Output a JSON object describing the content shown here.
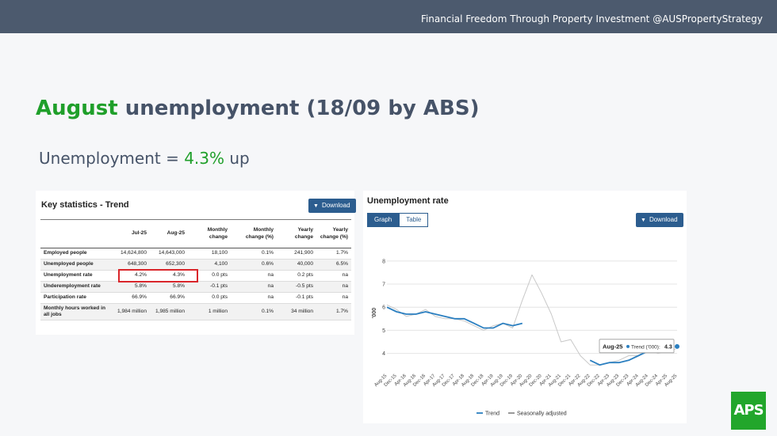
{
  "header": {
    "tagline": "Financial Freedom Through Property Investment @AUSPropertyStrategy"
  },
  "title": {
    "accent": "August",
    "rest": " unemployment (18/09 by ABS)"
  },
  "subtitle": {
    "prefix": "Unemployment = ",
    "value": "4.3%",
    "suffix": " up"
  },
  "stats_panel": {
    "title": "Key statistics - Trend",
    "download_label": "Download",
    "columns": [
      "",
      "Jul-25",
      "Aug-25",
      "Monthly change",
      "Monthly change (%)",
      "Yearly change",
      "Yearly change (%)"
    ],
    "rows": [
      [
        "Employed people",
        "14,624,800",
        "14,643,000",
        "18,100",
        "0.1%",
        "241,900",
        "1.7%"
      ],
      [
        "Unemployed people",
        "648,300",
        "652,300",
        "4,100",
        "0.6%",
        "40,000",
        "6.5%"
      ],
      [
        "Unemployment rate",
        "4.2%",
        "4.3%",
        "0.0 pts",
        "na",
        "0.2 pts",
        "na"
      ],
      [
        "Underemployment rate",
        "5.8%",
        "5.8%",
        "-0.1 pts",
        "na",
        "-0.5 pts",
        "na"
      ],
      [
        "Participation rate",
        "66.9%",
        "66.9%",
        "0.0 pts",
        "na",
        "-0.1 pts",
        "na"
      ],
      [
        "Monthly hours worked in all jobs",
        "1,984 million",
        "1,985 million",
        "1 million",
        "0.1%",
        "34 million",
        "1.7%"
      ]
    ]
  },
  "chart_panel": {
    "title": "Unemployment rate",
    "tabs": [
      {
        "label": "Graph",
        "active": true
      },
      {
        "label": "Table",
        "active": false
      }
    ],
    "download_label": "Download"
  },
  "chart_data": {
    "type": "line",
    "ylabel": "'000",
    "ylim": [
      3.3,
      8.2
    ],
    "yticks": [
      4,
      5,
      6,
      7,
      8
    ],
    "categories": [
      "Aug-15",
      "Dec-15",
      "Apr-16",
      "Aug-16",
      "Dec-16",
      "Apr-17",
      "Aug-17",
      "Dec-17",
      "Apr-18",
      "Aug-18",
      "Dec-18",
      "Apr-19",
      "Aug-19",
      "Dec-19",
      "Apr-20",
      "Aug-20",
      "Dec-20",
      "Apr-21",
      "Aug-21",
      "Dec-21",
      "Apr-22",
      "Aug-22",
      "Dec-22",
      "Apr-23",
      "Aug-23",
      "Dec-23",
      "Apr-24",
      "Aug-24",
      "Dec-24",
      "Apr-25",
      "Aug-25"
    ],
    "series": [
      {
        "name": "Trend",
        "color": "#2b7fc0",
        "values": [
          6.0,
          5.8,
          5.7,
          5.7,
          5.8,
          5.7,
          5.6,
          5.5,
          5.5,
          5.3,
          5.1,
          5.1,
          5.3,
          5.2,
          5.3,
          null,
          null,
          null,
          null,
          null,
          null,
          3.7,
          3.5,
          3.6,
          3.6,
          3.7,
          3.9,
          4.1,
          4.1,
          4.2,
          4.3
        ]
      },
      {
        "name": "Seasonally adjusted",
        "color": "#c8c8c8",
        "values": [
          6.1,
          5.9,
          5.6,
          5.7,
          5.9,
          5.6,
          5.5,
          5.5,
          5.4,
          5.2,
          5.0,
          5.2,
          5.3,
          5.1,
          6.3,
          7.4,
          6.6,
          5.7,
          4.5,
          4.6,
          3.9,
          3.5,
          3.5,
          3.6,
          3.7,
          3.9,
          3.9,
          4.2,
          4.0,
          4.1,
          4.2
        ]
      }
    ],
    "legend_position": "bottom",
    "tooltip": {
      "category": "Aug-25",
      "series": "Trend ('000)",
      "value": "4.3"
    },
    "grid": true
  },
  "logo": {
    "text": "APS"
  }
}
